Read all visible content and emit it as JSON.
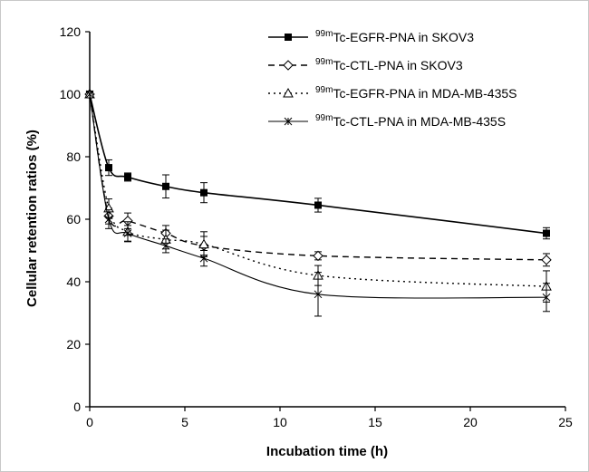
{
  "chart_data": {
    "type": "line",
    "xlabel": "Incubation time (h)",
    "ylabel": "Cellular retention ratios (%)",
    "xlim": [
      0,
      25
    ],
    "ylim": [
      0,
      120
    ],
    "xticks": [
      0,
      5,
      10,
      15,
      20,
      25
    ],
    "yticks": [
      0,
      20,
      40,
      60,
      80,
      100,
      120
    ],
    "grid": false,
    "legend_position": "top-right",
    "series": [
      {
        "sup": "99m",
        "name": "Tc-EGFR-PNA in SKOV3",
        "marker": "filled-square",
        "line_style": "solid",
        "x": [
          0,
          1,
          2,
          4,
          6,
          12,
          24
        ],
        "y": [
          100,
          76.5,
          73.5,
          70.5,
          68.5,
          64.5,
          55.5
        ],
        "err": [
          0,
          2.5,
          1.3,
          3.7,
          3.2,
          2.2,
          1.8
        ]
      },
      {
        "sup": "99m",
        "name": "Tc-CTL-PNA in SKOV3",
        "marker": "open-diamond",
        "line_style": "dashed",
        "x": [
          0,
          1,
          2,
          4,
          6,
          12,
          24
        ],
        "y": [
          100,
          61,
          59.5,
          55.5,
          51.5,
          48.3,
          47
        ],
        "err": [
          0,
          2.5,
          2.5,
          2.5,
          3.0,
          1.3,
          2.0
        ]
      },
      {
        "sup": "99m",
        "name": "Tc-EGFR-PNA in MDA-MB-435S",
        "marker": "open-triangle",
        "line_style": "dotted",
        "x": [
          0,
          1,
          2,
          4,
          6,
          12,
          24
        ],
        "y": [
          100,
          63.5,
          56,
          53.5,
          52,
          42,
          38.5
        ],
        "err": [
          0,
          3.0,
          3.2,
          3.0,
          4.0,
          3.2,
          5.0
        ]
      },
      {
        "sup": "99m",
        "name": "Tc-CTL-PNA in MDA-MB-435S",
        "marker": "cross",
        "line_style": "solid-thin",
        "x": [
          0,
          1,
          2,
          4,
          6,
          12,
          24
        ],
        "y": [
          100,
          60,
          55.5,
          51.5,
          47.5,
          36,
          35
        ],
        "err": [
          0,
          3.0,
          2.5,
          2.2,
          2.5,
          7.0,
          4.5
        ]
      }
    ]
  }
}
